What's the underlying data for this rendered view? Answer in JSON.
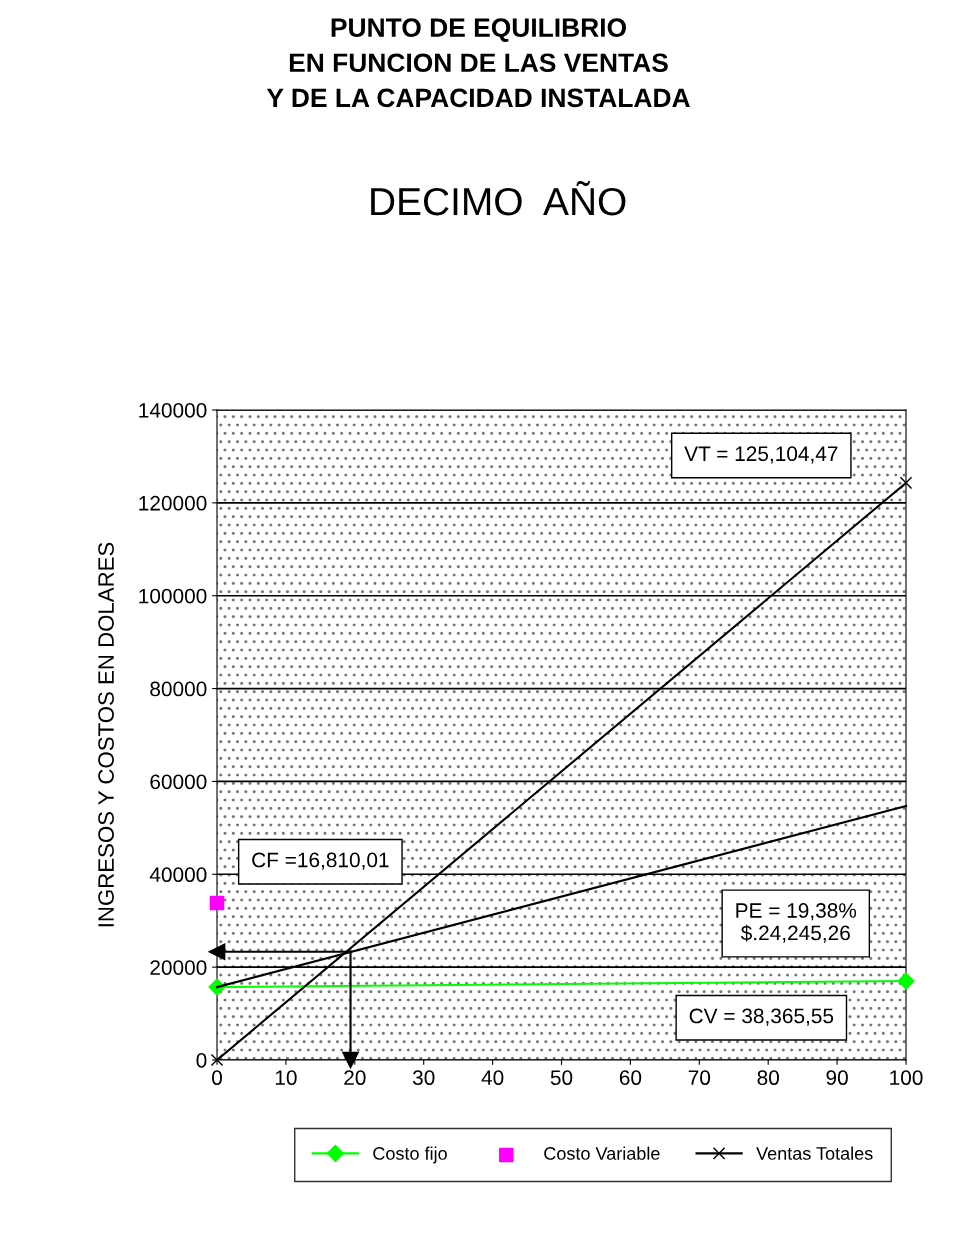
{
  "chart_data": {
    "type": "line",
    "title": "PUNTO DE EQUILIBRIO\nEN FUNCION DE LAS VENTAS\nY DE LA CAPACIDAD INSTALADA",
    "subtitle": "DECIMO  AÑO",
    "ylabel": "INGRESOS Y COSTOS EN DOLARES",
    "xlim": [
      0,
      100
    ],
    "xticks": [
      0,
      10,
      20,
      30,
      40,
      50,
      60,
      70,
      80,
      90,
      100
    ],
    "ylim": [
      0,
      140000
    ],
    "yticks": [
      0,
      20000,
      40000,
      60000,
      80000,
      100000,
      120000,
      140000
    ],
    "grid": "y",
    "legend": "bottom",
    "series": [
      {
        "name": "Costo fijo",
        "color": "#00ff00",
        "marker": "diamond",
        "x": [
          0,
          100
        ],
        "values": [
          15700,
          17000
        ]
      },
      {
        "name": "Costo Variable",
        "type": "scatter",
        "color": "#ff00ff",
        "marker": "square",
        "x": [
          0
        ],
        "values": [
          33800
        ]
      },
      {
        "name": "Ventas Totales",
        "color": "#000000",
        "marker": "cross",
        "x": [
          0,
          100
        ],
        "values": [
          0,
          124300
        ]
      },
      {
        "color": "#000000",
        "marker": "none",
        "x": [
          0,
          100
        ],
        "values": [
          15700,
          54700
        ]
      },
      {
        "color": "#000000",
        "marker": "triangle",
        "x": [
          19.38,
          0
        ],
        "values": [
          23300,
          23300
        ]
      },
      {
        "color": "#000000",
        "marker": "triangle",
        "x": [
          19.38,
          19.38
        ],
        "values": [
          23300,
          0
        ]
      }
    ],
    "annotations": [
      "VT = 125,104,47",
      "CF =16,810,01",
      "PE = 19,38%\n$.24,245,26",
      "CV = 38,365,55"
    ]
  }
}
